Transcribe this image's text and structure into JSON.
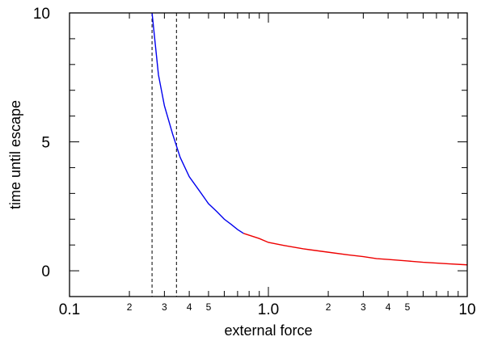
{
  "chart_data": {
    "type": "line",
    "xlabel": "external force",
    "ylabel": "time until escape",
    "xscale": "log",
    "xlim": [
      0.1,
      10
    ],
    "ylim": [
      -1,
      10
    ],
    "grid": false,
    "x_major_ticks": [
      {
        "value": 0.1,
        "label": "0.1"
      },
      {
        "value": 1.0,
        "label": "1.0"
      },
      {
        "value": 10,
        "label": "10"
      }
    ],
    "x_minor_labeled_ticks": [
      {
        "value": 0.2,
        "label": "2"
      },
      {
        "value": 0.3,
        "label": "3"
      },
      {
        "value": 0.4,
        "label": "4"
      },
      {
        "value": 0.5,
        "label": "5"
      },
      {
        "value": 2,
        "label": "2"
      },
      {
        "value": 3,
        "label": "3"
      },
      {
        "value": 4,
        "label": "4"
      },
      {
        "value": 5,
        "label": "5"
      }
    ],
    "y_labeled_ticks": [
      {
        "value": 0,
        "label": "0"
      },
      {
        "value": 5,
        "label": "5"
      },
      {
        "value": 10,
        "label": "10"
      }
    ],
    "vertical_reference_lines": [
      {
        "x": 0.26,
        "style": "dashed",
        "color": "#000000"
      },
      {
        "x": 0.345,
        "style": "dashed",
        "color": "#000000"
      }
    ],
    "series": [
      {
        "color": "#0000ee",
        "x": [
          0.26,
          0.28,
          0.3,
          0.33,
          0.36,
          0.4,
          0.45,
          0.5,
          0.55,
          0.6,
          0.65,
          0.7,
          0.75
        ],
        "y": [
          10.0,
          7.6,
          6.4,
          5.3,
          4.4,
          3.65,
          3.1,
          2.6,
          2.3,
          2.0,
          1.8,
          1.6,
          1.45
        ]
      },
      {
        "color": "#ee0000",
        "x": [
          0.75,
          0.9,
          1.0,
          1.2,
          1.5,
          2.0,
          2.5,
          3.0,
          3.5,
          4.0,
          5.0,
          6.0,
          7.0,
          8.0,
          10.0
        ],
        "y": [
          1.45,
          1.25,
          1.1,
          0.98,
          0.85,
          0.72,
          0.62,
          0.55,
          0.47,
          0.44,
          0.38,
          0.33,
          0.3,
          0.27,
          0.23
        ]
      }
    ]
  }
}
